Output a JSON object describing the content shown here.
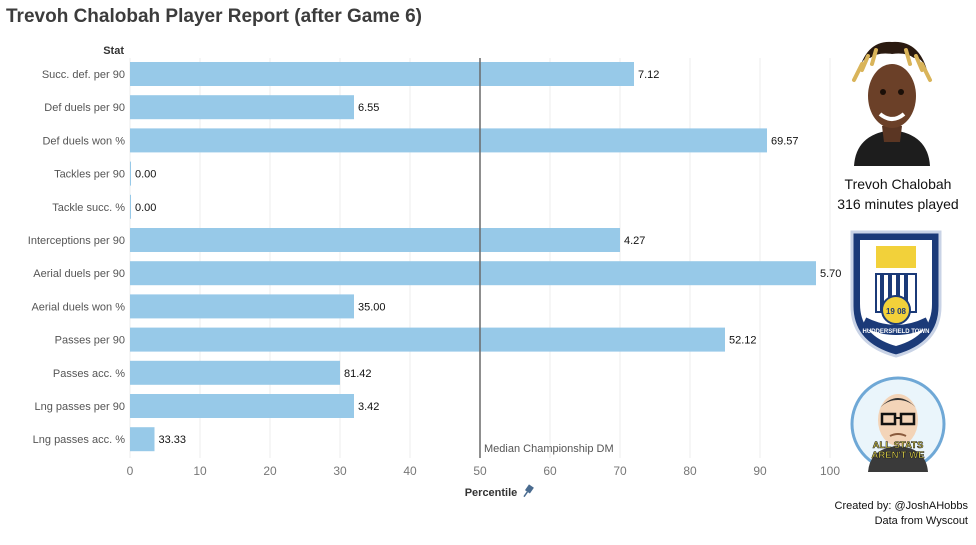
{
  "page": {
    "title": "Trevoh Chalobah Player Report (after Game 6)",
    "player_name": "Trevoh Chalobah",
    "minutes_played": "316 minutes played",
    "credit_line1": "Created by: @JoshAHobbs",
    "credit_line2": "Data from Wyscout",
    "crest_text": "HUDDERSFIELD TOWN",
    "crest_year": "19  08",
    "logo_text_1": "ALL STATS",
    "logo_text_2": "AREN'T WE"
  },
  "chart_data": {
    "type": "bar",
    "orientation": "horizontal",
    "row_header": "Stat",
    "xlabel": "Percentile",
    "xlim": [
      0,
      100
    ],
    "xticks": [
      0,
      10,
      20,
      30,
      40,
      50,
      60,
      70,
      80,
      90,
      100
    ],
    "reference_line": {
      "value": 50,
      "label": "Median Championship DM"
    },
    "bar_color": "#97c9e8",
    "categories": [
      "Succ. def. per 90",
      "Def duels per 90",
      "Def duels won %",
      "Tackles per 90",
      "Tackle succ. %",
      "Interceptions per 90",
      "Aerial duels per 90",
      "Aerial duels won %",
      "Passes per 90",
      "Passes acc. %",
      "Lng passes per 90",
      "Lng passes acc. %"
    ],
    "percentiles": [
      72,
      32,
      91,
      0,
      0,
      70,
      98,
      32,
      85,
      30,
      32,
      3.5
    ],
    "labels": [
      "7.12",
      "6.55",
      "69.57",
      "0.00",
      "0.00",
      "4.27",
      "5.70",
      "35.00",
      "52.12",
      "81.42",
      "3.42",
      "33.33"
    ]
  }
}
